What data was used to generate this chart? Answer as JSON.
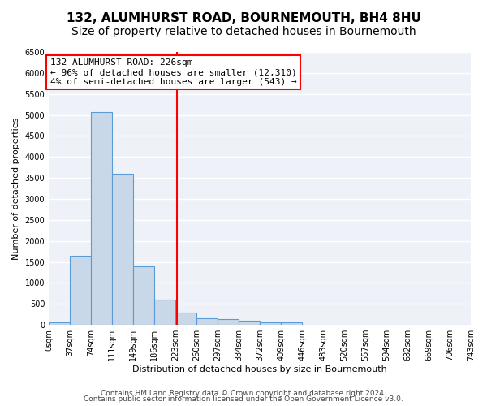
{
  "title1": "132, ALUMHURST ROAD, BOURNEMOUTH, BH4 8HU",
  "title2": "Size of property relative to detached houses in Bournemouth",
  "xlabel": "Distribution of detached houses by size in Bournemouth",
  "ylabel": "Number of detached properties",
  "bar_color": "#c8d8e8",
  "bar_edge_color": "#5b9bd5",
  "background_color": "#eef2f8",
  "grid_color": "#ffffff",
  "red_line_x": 226,
  "annotation_title": "132 ALUMHURST ROAD: 226sqm",
  "annotation_line1": "← 96% of detached houses are smaller (12,310)",
  "annotation_line2": "4% of semi-detached houses are larger (543) →",
  "bin_edges": [
    0,
    37,
    74,
    111,
    149,
    186,
    223,
    260,
    297,
    334,
    372,
    409,
    446,
    483,
    520,
    557,
    594,
    632,
    669,
    706,
    743
  ],
  "bar_heights": [
    60,
    1650,
    5060,
    3600,
    1400,
    600,
    300,
    160,
    140,
    100,
    50,
    50,
    10,
    5,
    2,
    2,
    1,
    1,
    0,
    0
  ],
  "ylim": [
    0,
    6500
  ],
  "yticks": [
    0,
    500,
    1000,
    1500,
    2000,
    2500,
    3000,
    3500,
    4000,
    4500,
    5000,
    5500,
    6000,
    6500
  ],
  "x_labels": [
    "0sqm",
    "37sqm",
    "74sqm",
    "111sqm",
    "149sqm",
    "186sqm",
    "223sqm",
    "260sqm",
    "297sqm",
    "334sqm",
    "372sqm",
    "409sqm",
    "446sqm",
    "483sqm",
    "520sqm",
    "557sqm",
    "594sqm",
    "632sqm",
    "669sqm",
    "706sqm",
    "743sqm"
  ],
  "footer1": "Contains HM Land Registry data © Crown copyright and database right 2024.",
  "footer2": "Contains public sector information licensed under the Open Government Licence v3.0.",
  "title1_fontsize": 11,
  "title2_fontsize": 10,
  "axis_label_fontsize": 8,
  "tick_fontsize": 7,
  "annotation_fontsize": 8,
  "footer_fontsize": 6.5
}
